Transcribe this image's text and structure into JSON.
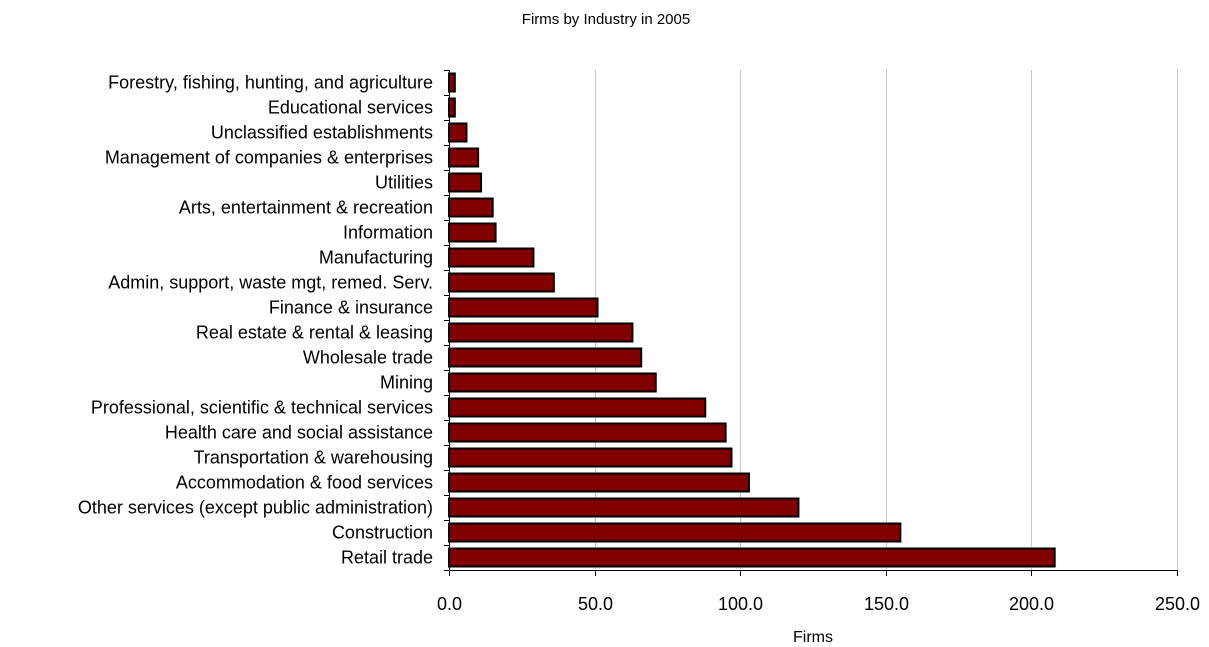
{
  "chart_data": {
    "type": "bar",
    "orientation": "horizontal",
    "title": "Firms by Industry in 2005",
    "xlabel": "Firms",
    "ylabel": "",
    "xlim": [
      0,
      250
    ],
    "x_ticks": [
      "0.0",
      "50.0",
      "100.0",
      "150.0",
      "200.0",
      "250.0"
    ],
    "x_tick_values": [
      0,
      50,
      100,
      150,
      200,
      250
    ],
    "grid": "vertical",
    "bar_color": "#800000",
    "categories": [
      "Forestry, fishing, hunting, and agriculture",
      "Educational services",
      "Unclassified establishments",
      "Management of companies & enterprises",
      "Utilities",
      "Arts, entertainment & recreation",
      "Information",
      "Manufacturing",
      "Admin, support, waste mgt, remed. Serv.",
      "Finance & insurance",
      "Real estate & rental & leasing",
      "Wholesale trade",
      "Mining",
      "Professional, scientific & technical services",
      "Health care and social assistance",
      "Transportation & warehousing",
      "Accommodation & food services",
      "Other services (except public administration)",
      "Construction",
      "Retail trade"
    ],
    "values": [
      2,
      2,
      6,
      10,
      11,
      15,
      16,
      29,
      36,
      51,
      63,
      66,
      71,
      88,
      95,
      97,
      103,
      120,
      155,
      208
    ]
  }
}
